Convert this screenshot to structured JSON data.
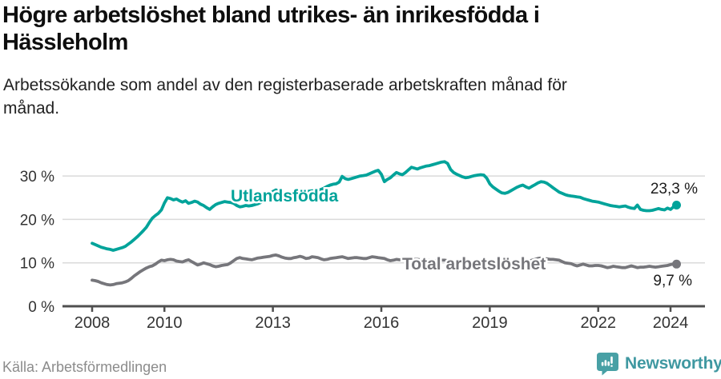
{
  "title": "Högre arbetslöshet bland utrikes- än inrikesfödda i\nHässleholm",
  "subtitle": "Arbetssökande som andel av den registerbaserade arbetskraften månad för\nmånad.",
  "source": "Källa: Arbetsförmedlingen",
  "branding": {
    "name": "Newsworthy",
    "icon": "newsworthy-speech-bubble-bar-chart-icon",
    "icon_color": "#48a0a5",
    "text_color": "#3f98a1"
  },
  "colors": {
    "accent_teal": "#00a39a",
    "neutral_gray": "#76767b",
    "grid": "#dadada",
    "axis": "#4f4f4f",
    "title_text": "#0e0e0e",
    "muted_text": "#8c8c8c"
  },
  "chart_data": {
    "type": "line",
    "title": "Högre arbetslöshet bland utrikes- än inrikesfödda i Hässleholm",
    "subtitle": "Arbetssökande som andel av den registerbaserade arbetskraften månad för månad.",
    "x_axis": {
      "unit": "year",
      "ticks": [
        2008,
        2010,
        2013,
        2016,
        2019,
        2022,
        2024
      ],
      "tick_labels": [
        "2008",
        "2010",
        "2013",
        "2016",
        "2019",
        "2022",
        "2024"
      ],
      "range": [
        2007.3,
        2025.0
      ]
    },
    "y_axis": {
      "unit": "percent",
      "ticks": [
        0,
        10,
        20,
        30
      ],
      "tick_labels": [
        "0 %",
        "10 %",
        "20 %",
        "30 %"
      ],
      "range": [
        0,
        34.5
      ],
      "grid": true
    },
    "frequency": "monthly",
    "start_year": 2008,
    "series": [
      {
        "name": "Utlandsfödda",
        "color": "#00a39a",
        "end_label": "23,3 %",
        "end_value": 23.3,
        "values": [
          14.5,
          14.2,
          13.9,
          13.6,
          13.4,
          13.2,
          13.1,
          12.9,
          13.1,
          13.3,
          13.5,
          13.8,
          14.3,
          14.8,
          15.4,
          16.0,
          16.7,
          17.4,
          18.2,
          19.3,
          20.3,
          20.9,
          21.4,
          22.2,
          23.8,
          25.0,
          24.8,
          24.5,
          24.7,
          24.3,
          24.0,
          24.3,
          23.7,
          23.9,
          24.2,
          24.0,
          23.5,
          23.2,
          22.7,
          22.3,
          22.9,
          23.4,
          23.7,
          23.9,
          24.1,
          24.0,
          23.9,
          23.7,
          23.2,
          22.9,
          23.0,
          23.2,
          23.1,
          23.2,
          23.4,
          23.6,
          23.9,
          24.4,
          25.1,
          25.9,
          26.4,
          26.8,
          26.5,
          26.1,
          25.9,
          25.7,
          25.8,
          25.9,
          26.0,
          26.1,
          26.2,
          26.4,
          26.5,
          26.6,
          26.6,
          26.7,
          26.9,
          27.2,
          27.6,
          27.9,
          28.1,
          28.2,
          28.6,
          29.9,
          29.4,
          29.2,
          29.4,
          29.6,
          29.8,
          30.0,
          30.1,
          30.2,
          30.5,
          30.8,
          31.1,
          31.3,
          30.4,
          28.7,
          29.2,
          29.6,
          30.2,
          30.8,
          30.5,
          30.3,
          30.8,
          31.4,
          32.0,
          31.8,
          31.6,
          31.9,
          32.1,
          32.3,
          32.4,
          32.6,
          32.8,
          33.0,
          33.2,
          33.3,
          32.9,
          31.5,
          30.8,
          30.4,
          30.1,
          29.8,
          29.6,
          29.7,
          29.9,
          30.1,
          30.2,
          30.3,
          30.2,
          29.5,
          28.2,
          27.5,
          27.0,
          26.5,
          26.1,
          26.0,
          26.2,
          26.6,
          27.0,
          27.4,
          27.7,
          27.9,
          27.5,
          27.2,
          27.6,
          28.0,
          28.4,
          28.7,
          28.6,
          28.3,
          27.8,
          27.3,
          26.8,
          26.3,
          26.0,
          25.7,
          25.5,
          25.4,
          25.3,
          25.2,
          25.1,
          24.8,
          24.6,
          24.4,
          24.2,
          24.1,
          24.0,
          23.8,
          23.6,
          23.4,
          23.2,
          23.1,
          23.0,
          22.9,
          23.0,
          23.1,
          22.8,
          22.6,
          22.5,
          23.3,
          22.3,
          22.1,
          22.0,
          22.0,
          22.1,
          22.3,
          22.5,
          22.3,
          22.2,
          22.6,
          22.3,
          22.9,
          23.3
        ]
      },
      {
        "name": "Total arbetslöshet",
        "color": "#76767b",
        "end_label": "9,7 %",
        "end_value": 9.7,
        "values": [
          6.0,
          5.9,
          5.7,
          5.4,
          5.2,
          5.0,
          4.9,
          5.0,
          5.2,
          5.3,
          5.4,
          5.6,
          5.9,
          6.4,
          7.0,
          7.5,
          8.0,
          8.4,
          8.8,
          9.1,
          9.3,
          9.7,
          10.2,
          10.6,
          10.5,
          10.7,
          10.8,
          10.7,
          10.4,
          10.3,
          10.2,
          10.5,
          10.7,
          10.3,
          9.9,
          9.5,
          9.7,
          10.0,
          9.8,
          9.6,
          9.3,
          9.1,
          9.2,
          9.4,
          9.5,
          9.6,
          10.0,
          10.5,
          11.0,
          11.2,
          11.0,
          10.9,
          10.8,
          10.7,
          10.9,
          11.1,
          11.2,
          11.3,
          11.4,
          11.5,
          11.7,
          11.8,
          11.6,
          11.3,
          11.1,
          11.0,
          11.0,
          11.2,
          11.3,
          11.5,
          11.3,
          11.0,
          11.1,
          11.4,
          11.3,
          11.2,
          10.9,
          10.7,
          10.8,
          11.0,
          11.1,
          11.2,
          11.3,
          11.4,
          11.2,
          11.0,
          11.1,
          11.2,
          11.2,
          11.1,
          11.0,
          11.0,
          11.2,
          11.4,
          11.3,
          11.2,
          11.1,
          11.0,
          10.7,
          10.5,
          10.6,
          10.8,
          10.7,
          10.6,
          10.6,
          10.7,
          10.8,
          10.8,
          10.8,
          10.7,
          10.7,
          10.6,
          10.6,
          10.5,
          10.5,
          10.5,
          10.6,
          10.6,
          10.5,
          10.4,
          10.4,
          10.3,
          10.3,
          10.2,
          10.2,
          10.2,
          10.2,
          10.3,
          10.3,
          10.3,
          10.2,
          10.2,
          10.2,
          10.1,
          10.0,
          10.0,
          9.9,
          9.9,
          9.9,
          10.0,
          10.0,
          10.1,
          10.1,
          10.2,
          10.2,
          10.4,
          10.6,
          10.8,
          11.0,
          11.1,
          11.0,
          10.9,
          10.8,
          10.8,
          10.7,
          10.6,
          10.3,
          10.0,
          9.9,
          9.8,
          9.5,
          9.3,
          9.5,
          9.7,
          9.5,
          9.3,
          9.3,
          9.4,
          9.4,
          9.3,
          9.1,
          8.9,
          9.0,
          9.2,
          9.1,
          9.0,
          8.9,
          8.9,
          9.1,
          9.3,
          9.1,
          8.9,
          9.0,
          9.0,
          9.1,
          9.2,
          9.1,
          9.0,
          9.1,
          9.2,
          9.3,
          9.4,
          9.6,
          9.7,
          9.7
        ]
      }
    ],
    "legend_position": "inline-labels",
    "annotations": [
      {
        "text": "Utlandsfödda",
        "series": 0
      },
      {
        "text": "Total arbetslöshet",
        "series": 1
      },
      {
        "text": "23,3 %",
        "series": 0,
        "type": "end-value"
      },
      {
        "text": "9,7 %",
        "series": 1,
        "type": "end-value"
      }
    ]
  }
}
